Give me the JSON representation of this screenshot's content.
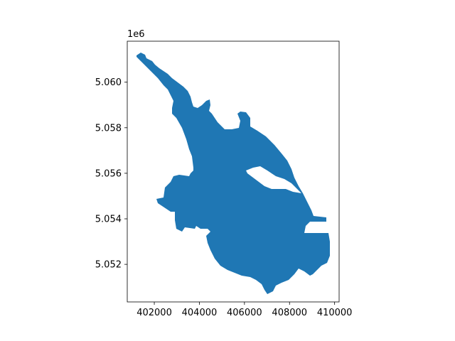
{
  "plot": {
    "axis_offset_label": "1e6",
    "region_color": "#1f77b4",
    "x_range": [
      400800,
      410200
    ],
    "y_range": [
      5050350,
      5061800
    ]
  },
  "chart_data": {
    "type": "map",
    "title": "",
    "xlabel": "",
    "ylabel": "",
    "xlim": [
      400800,
      410200
    ],
    "ylim": [
      5050350,
      5061800
    ],
    "x_ticks": [
      402000,
      404000,
      406000,
      408000,
      410000
    ],
    "x_tick_labels": [
      "402000",
      "404000",
      "406000",
      "408000",
      "410000"
    ],
    "y_ticks": [
      5052000,
      5054000,
      5056000,
      5058000,
      5060000
    ],
    "y_tick_labels": [
      "5.052",
      "5.054",
      "5.056",
      "5.058",
      "5.060"
    ],
    "y_offset": "1e6",
    "grid": false,
    "fill_color": "#1f77b4"
  }
}
